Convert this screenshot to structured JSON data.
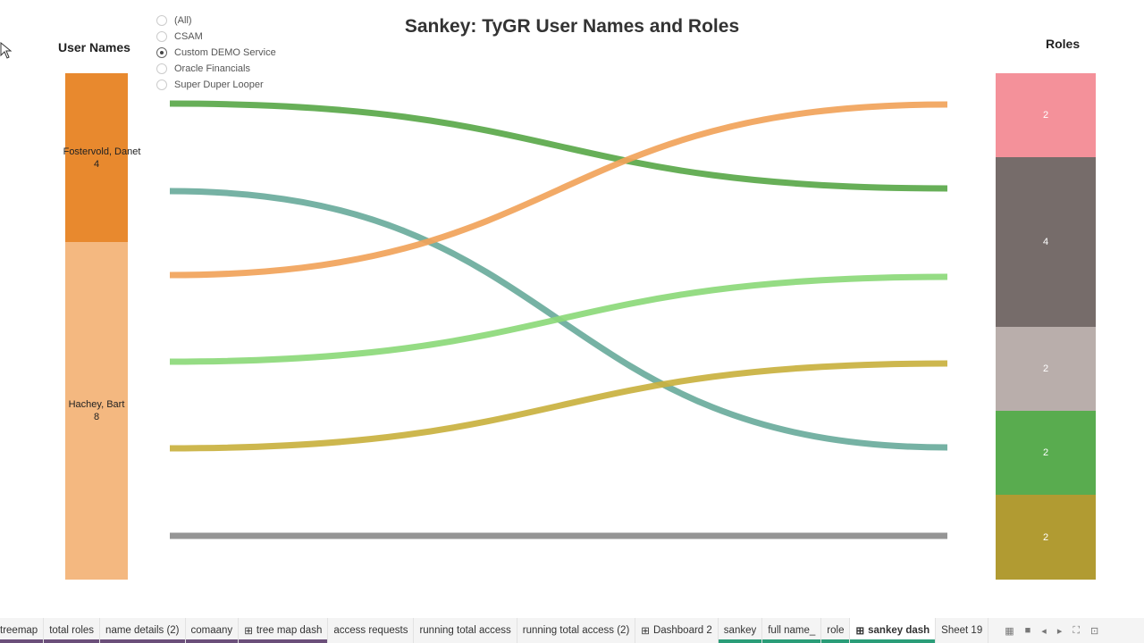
{
  "title": "Sankey: TyGR User Names and Roles",
  "left_header": "User Names",
  "right_header": "Roles",
  "filter": {
    "options": [
      "(All)",
      "CSAM",
      "Custom DEMO Service",
      "Oracle Financials",
      "Super Duper Looper"
    ],
    "selected": "Custom DEMO Service"
  },
  "users": [
    {
      "name": "Fostervold, Danet",
      "count": "4",
      "color": "#e8892e"
    },
    {
      "name": "Hachey, Bart",
      "count": "8",
      "color": "#f4b880"
    }
  ],
  "roles": [
    {
      "count": "2",
      "color": "#f4919a"
    },
    {
      "count": "4",
      "color": "#766c6a"
    },
    {
      "count": "2",
      "color": "#b9aeab"
    },
    {
      "count": "2",
      "color": "#59ac4f"
    },
    {
      "count": "2",
      "color": "#b19b32"
    }
  ],
  "flows": [
    {
      "color": "#5aa84a"
    },
    {
      "color": "#6aab9c"
    },
    {
      "color": "#f1a35a"
    },
    {
      "color": "#8cd97a"
    },
    {
      "color": "#c9b13f"
    },
    {
      "color": "#8c8c8c"
    }
  ],
  "tabs": [
    {
      "label": "treemap",
      "group": "#6b4f7a"
    },
    {
      "label": "total roles",
      "group": "#6b4f7a"
    },
    {
      "label": "name details (2)",
      "group": "#6b4f7a"
    },
    {
      "label": "comaany",
      "group": "#6b4f7a"
    },
    {
      "label": "tree map dash",
      "icon": "dashboard-icon",
      "group": "#6b4f7a"
    },
    {
      "label": "access requests"
    },
    {
      "label": "running total access"
    },
    {
      "label": "running total access (2)"
    },
    {
      "label": "Dashboard 2",
      "icon": "dashboard-icon"
    },
    {
      "label": "sankey",
      "group": "#2a9d78"
    },
    {
      "label": "full name_",
      "group": "#2a9d78"
    },
    {
      "label": "role",
      "group": "#2a9d78"
    },
    {
      "label": "sankey dash",
      "icon": "dashboard-icon",
      "group": "#2a9d78",
      "active": true
    },
    {
      "label": "Sheet 19"
    }
  ]
}
